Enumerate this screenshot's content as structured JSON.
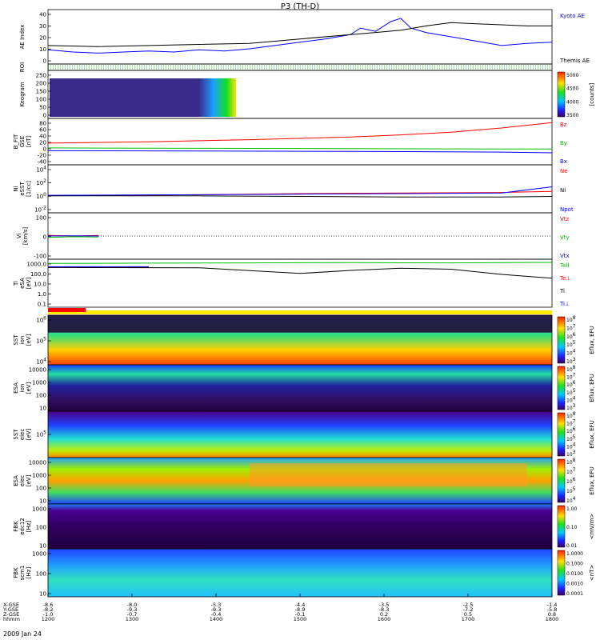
{
  "title": "P3 (TH-D)",
  "date_label": "2009 Jan 24",
  "colors": {
    "black": "#000000",
    "blue": "#0000ff",
    "red": "#ff0000",
    "green": "#00c000",
    "spec_lo": "#3a0060",
    "spec_hi": "#ff2000",
    "roi_bar_red": "#ff0000",
    "roi_bar_yellow": "#ffea00"
  },
  "chart_data": {
    "type": "line",
    "x_axis": {
      "label_rows": [
        "X-GSE",
        "Y-GSE",
        "Z-GSE",
        "hhmm"
      ],
      "ticks": [
        {
          "x": "-8.6",
          "y": "-8.2",
          "z": "-1.0",
          "t": "1200"
        },
        {
          "x": "-8.0",
          "y": "-9.3",
          "z": "-0.7",
          "t": "1300"
        },
        {
          "x": "-5.3",
          "y": "-9.3",
          "z": "-0.4",
          "t": "1400"
        },
        {
          "x": "-4.4",
          "y": "-8.9",
          "z": "-0.1",
          "t": "1500"
        },
        {
          "x": "-3.5",
          "y": "-8.3",
          "z": "0.2",
          "t": "1600"
        },
        {
          "x": "-2.5",
          "y": "-7.2",
          "z": "0.5",
          "t": "1700"
        },
        {
          "x": "-1.4",
          "y": "-5.8",
          "z": "0.8",
          "t": "1800"
        }
      ]
    },
    "panels": [
      {
        "id": "ae",
        "ylabel": [
          "AE Index"
        ],
        "yticks": [
          "40",
          "30",
          "20",
          "10",
          "0"
        ],
        "series": [
          {
            "name": "Kyoto AE",
            "color": "#0000ff",
            "t": [
              0,
              0.05,
              0.1,
              0.15,
              0.2,
              0.25,
              0.3,
              0.35,
              0.4,
              0.45,
              0.5,
              0.55,
              0.6,
              0.62,
              0.65,
              0.68,
              0.7,
              0.72,
              0.75,
              0.8,
              0.85,
              0.9,
              0.95,
              1.0
            ],
            "v": [
              8,
              6,
              5,
              6,
              7,
              6,
              8,
              7,
              9,
              12,
              15,
              18,
              22,
              28,
              25,
              34,
              37,
              28,
              24,
              20,
              16,
              12,
              14,
              15
            ]
          },
          {
            "name": "Themis AE",
            "color": "#000000",
            "t": [
              0,
              0.1,
              0.2,
              0.3,
              0.4,
              0.5,
              0.6,
              0.65,
              0.7,
              0.75,
              0.8,
              0.85,
              0.9,
              0.95,
              1.0
            ],
            "v": [
              12,
              11,
              12,
              13,
              14,
              18,
              22,
              24,
              26,
              30,
              33,
              32,
              31,
              30,
              30
            ]
          }
        ]
      },
      {
        "id": "roi",
        "ylabel": [
          "ROI"
        ],
        "yticks": []
      },
      {
        "id": "keogram",
        "ylabel": [
          "Keogram"
        ],
        "yticks": [
          "250",
          "200",
          "150",
          "100",
          "50",
          "0"
        ],
        "colorbar": {
          "label": "[counts]",
          "ticks": [
            "5000",
            "4500",
            "4000",
            "3500"
          ]
        }
      },
      {
        "id": "bfgm",
        "ylabel": [
          "B_FIT",
          "GSE",
          "[nT]"
        ],
        "yticks": [
          "80",
          "60",
          "40",
          "20",
          "0",
          "-20",
          "-40"
        ],
        "series": [
          {
            "name": "Bz",
            "color": "#ff0000",
            "t": [
              0,
              0.2,
              0.4,
              0.6,
              0.7,
              0.8,
              0.9,
              1.0
            ],
            "v": [
              18,
              22,
              28,
              36,
              42,
              50,
              62,
              78
            ]
          },
          {
            "name": "By",
            "color": "#00c000",
            "t": [
              0,
              0.3,
              0.6,
              0.9,
              1.0
            ],
            "v": [
              4,
              3,
              2,
              1,
              1
            ]
          },
          {
            "name": "Bx",
            "color": "#0000ff",
            "t": [
              0,
              0.3,
              0.6,
              0.9,
              1.0
            ],
            "v": [
              -4,
              -5,
              -6,
              -8,
              -10
            ]
          }
        ]
      },
      {
        "id": "density",
        "ylabel": [
          "Ni",
          "eSST",
          "[1/cc]"
        ],
        "yticks": [
          "10^4",
          "10^2",
          "10^0",
          "10^-2"
        ],
        "series": [
          {
            "name": "Ne",
            "color": "#ff0000",
            "t": [
              0,
              0.3,
              0.5,
              0.7,
              0.9,
              1.0
            ],
            "v": [
              0.0,
              0.2,
              0.4,
              0.5,
              0.6,
              0.8
            ]
          },
          {
            "name": "Ni",
            "color": "#000000",
            "t": [
              0,
              0.3,
              0.5,
              0.7,
              0.9,
              1.0
            ],
            "v": [
              0.0,
              0.0,
              -0.1,
              -0.2,
              -0.2,
              -0.1
            ]
          },
          {
            "name": "Npot",
            "color": "#0000ff",
            "t": [
              0,
              0.3,
              0.5,
              0.7,
              0.9,
              1.0
            ],
            "v": [
              0.1,
              0.2,
              0.3,
              0.4,
              0.5,
              1.6
            ]
          }
        ]
      },
      {
        "id": "velocity",
        "ylabel": [
          "Vi",
          "[km/s]"
        ],
        "yticks": [
          "100",
          "0",
          "-100"
        ],
        "series": [
          {
            "name": "Vtz",
            "color": "#ff0000",
            "t": [
              0,
              0.05,
              0.1
            ],
            "v": [
              4,
              0,
              3
            ]
          },
          {
            "name": "Vty",
            "color": "#00c000",
            "t": [
              0,
              0.05,
              0.1
            ],
            "v": [
              -8,
              -4,
              -6
            ]
          },
          {
            "name": "Vtx",
            "color": "#0000ff",
            "t": [
              0,
              0.05,
              0.1
            ],
            "v": [
              0,
              1,
              0
            ]
          }
        ]
      },
      {
        "id": "temperature",
        "ylabel": [
          "Ti",
          "eSA",
          "[eV]"
        ],
        "yticks": [
          "1000.0",
          "100.0",
          "10.0",
          "1.0",
          "0.1"
        ],
        "series": [
          {
            "name": "Tell",
            "color": "#00c000",
            "t": [
              0,
              0.2,
              0.4,
              0.6,
              0.8,
              1.0
            ],
            "v": [
              1500,
              1600,
              1700,
              1800,
              1700,
              1900
            ]
          },
          {
            "name": "Te⊥",
            "color": "#ff0000",
            "t": [
              0,
              0.2
            ],
            "v": [
              600,
              600
            ]
          },
          {
            "name": "Ti",
            "color": "#000000",
            "t": [
              0,
              0.3,
              0.5,
              0.6,
              0.7,
              0.8,
              0.9,
              1.0
            ],
            "v": [
              600,
              550,
              150,
              300,
              500,
              400,
              120,
              50
            ]
          },
          {
            "name": "Ti⊥",
            "color": "#0000ff",
            "t": [
              0,
              0.2
            ],
            "v": [
              700,
              700
            ]
          }
        ]
      },
      {
        "id": "roi_bar",
        "ylabel": [],
        "yticks": []
      },
      {
        "id": "sst_ion",
        "ylabel": [
          "SST",
          "ion",
          "[eV]"
        ],
        "yticks": [
          "10^6",
          "10^5",
          "10^4"
        ],
        "colorbar": {
          "label": "Eflux, EFU",
          "ticks": [
            "10^8",
            "10^7",
            "10^6",
            "10^5",
            "10^4",
            "10^3"
          ]
        }
      },
      {
        "id": "esa_ion",
        "ylabel": [
          "ESA",
          "ion",
          "[eV]"
        ],
        "yticks": [
          "10000",
          "1000",
          "100",
          "10"
        ],
        "colorbar": {
          "label": "Eflux, EFU",
          "ticks": [
            "10^8",
            "10^7",
            "10^6",
            "10^5",
            "10^4",
            "10^3"
          ]
        }
      },
      {
        "id": "sst_elec",
        "ylabel": [
          "SST",
          "elec",
          "[eV]"
        ],
        "yticks": [
          "10^5"
        ],
        "colorbar": {
          "label": "Eflux, EFU",
          "ticks": [
            "10^8",
            "10^7",
            "10^6",
            "10^5",
            "10^4",
            "10^3"
          ]
        }
      },
      {
        "id": "esa_elec",
        "ylabel": [
          "ESA",
          "elec",
          "[eV]"
        ],
        "yticks": [
          "10000",
          "1000",
          "100",
          "10"
        ],
        "colorbar": {
          "label": "Eflux, EFU",
          "ticks": [
            "10^8",
            "10^7",
            "10^6",
            "10^5",
            "10^4"
          ]
        }
      },
      {
        "id": "fbk_edc12",
        "ylabel": [
          "FBK",
          "edc12",
          "[Hz]"
        ],
        "yticks": [
          "1000",
          "100",
          "10"
        ],
        "colorbar": {
          "label": "<mV/m>",
          "ticks": [
            "1.00",
            "0.10",
            "0.01"
          ]
        }
      },
      {
        "id": "fbk_scm1",
        "ylabel": [
          "FBK",
          "scm1",
          "[Hz]"
        ],
        "yticks": [
          "1000",
          "100",
          "10"
        ],
        "colorbar": {
          "label": "<nT>",
          "ticks": [
            "1.0000",
            "0.1000",
            "0.0100",
            "0.0010",
            "0.0001"
          ]
        }
      }
    ]
  }
}
